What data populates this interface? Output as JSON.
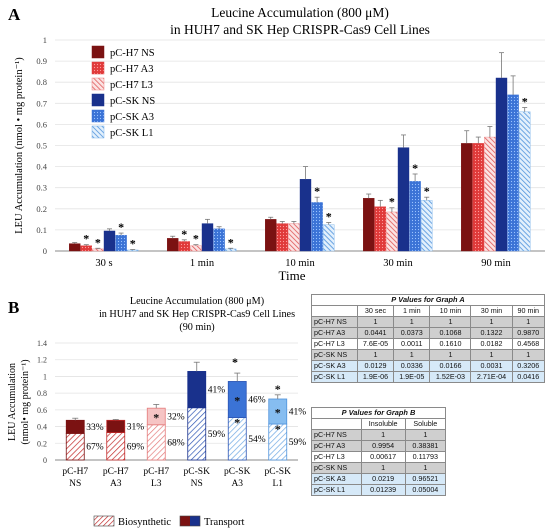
{
  "chart_data": [
    {
      "type": "bar",
      "panel_letter": "A",
      "title_line1": "Leucine Accumulation (800 μM)",
      "title_line2": "in HUH7 and SK Hep CRISPR-Cas9 Cell Lines",
      "ylabel": "LEU Accumulation (nmol • mg protein⁻¹)",
      "xlabel": "Time",
      "ylim": [
        0,
        1
      ],
      "yticks": [
        "0",
        "0.1",
        "0.2",
        "0.3",
        "0.4",
        "0.5",
        "0.6",
        "0.7",
        "0.8",
        "0.9",
        "1"
      ],
      "categories": [
        "30 s",
        "1 min",
        "10 min",
        "30 min",
        "90 min"
      ],
      "series": [
        {
          "name": "pC-H7 NS",
          "color": "#7b1212",
          "values": [
            0.035,
            0.06,
            0.15,
            0.25,
            0.51
          ],
          "errors": [
            0.005,
            0.01,
            0.01,
            0.02,
            0.06
          ],
          "star": [
            false,
            false,
            false,
            false,
            false
          ]
        },
        {
          "name": "pC-H7 A3",
          "color": "#e03a3a",
          "values": [
            0.025,
            0.045,
            0.13,
            0.21,
            0.51
          ],
          "errors": [
            0.005,
            0.008,
            0.01,
            0.03,
            0.03
          ],
          "star": [
            true,
            true,
            false,
            false,
            false
          ]
        },
        {
          "name": "pC-H7 L3",
          "color": "#ee8282",
          "values": [
            0.01,
            0.025,
            0.13,
            0.185,
            0.54
          ],
          "errors": [
            0.003,
            0.005,
            0.01,
            0.02,
            0.05
          ],
          "star": [
            true,
            true,
            false,
            true,
            false
          ]
        },
        {
          "name": "pC-SK NS",
          "color": "#19318c",
          "values": [
            0.095,
            0.13,
            0.34,
            0.49,
            0.82
          ],
          "errors": [
            0.01,
            0.02,
            0.06,
            0.06,
            0.12
          ],
          "star": [
            false,
            false,
            false,
            false,
            false
          ]
        },
        {
          "name": "pC-SK A3",
          "color": "#3b73d6",
          "values": [
            0.075,
            0.105,
            0.23,
            0.33,
            0.74
          ],
          "errors": [
            0.01,
            0.01,
            0.025,
            0.035,
            0.09
          ],
          "star": [
            true,
            false,
            true,
            true,
            false
          ]
        },
        {
          "name": "pC-SK L1",
          "color": "#7fb6ec",
          "values": [
            0.005,
            0.01,
            0.125,
            0.24,
            0.66
          ],
          "errors": [
            0.002,
            0.003,
            0.01,
            0.015,
            0.02
          ],
          "star": [
            true,
            true,
            true,
            true,
            true
          ]
        }
      ]
    },
    {
      "type": "bar",
      "panel_letter": "B",
      "title_line1": "Leucine Accumulation (800 μM)",
      "title_line2": "in HUH7 and SK Hep CRISPR-Cas9 Cell Lines",
      "title_line3": "(90 min)",
      "ylabel_line1": "LEU Accumulation",
      "ylabel_line2": "(nmol• mg protein⁻¹)",
      "ylim": [
        0,
        1.4
      ],
      "yticks": [
        "0",
        "0.2",
        "0.4",
        "0.6",
        "0.8",
        "1",
        "1.2",
        "1.4"
      ],
      "categories": [
        [
          "pC-H7",
          "NS"
        ],
        [
          "pC-H7",
          "A3"
        ],
        [
          "pC-H7",
          "L3"
        ],
        [
          "pC-SK",
          "NS"
        ],
        [
          "pC-SK",
          "A3"
        ],
        [
          "pC-SK",
          "L1"
        ]
      ],
      "totals": [
        0.475,
        0.475,
        0.62,
        1.06,
        0.94,
        0.73
      ],
      "total_errors": [
        0.025,
        0.01,
        0.045,
        0.11,
        0.1,
        0.05
      ],
      "biosynthetic_pct": [
        "67%",
        "69%",
        "68%",
        "59%",
        "54%",
        "59%"
      ],
      "transport_pct": [
        "33%",
        "31%",
        "32%",
        "41%",
        "46%",
        "41%"
      ],
      "biosynthetic_fraction": [
        0.67,
        0.69,
        0.68,
        0.59,
        0.54,
        0.59
      ],
      "star_bio": [
        false,
        false,
        false,
        false,
        true,
        true
      ],
      "star_trans": [
        false,
        false,
        true,
        false,
        true,
        true
      ],
      "star_top": [
        false,
        false,
        false,
        false,
        false,
        true
      ],
      "colors_dark": [
        "#7b1212",
        "#7b1212",
        "#ee8282",
        "#19318c",
        "#3b73d6",
        "#7fb6ec"
      ],
      "colors_light": [
        "#7b1212",
        "#7b1212",
        "#ee8282",
        "#19318c",
        "#3b73d6",
        "#7fb6ec"
      ],
      "legend": [
        "Biosynthetic",
        "Transport"
      ]
    }
  ],
  "tableA": {
    "caption_p": "P",
    "caption_rest": " Values for Graph A",
    "columns": [
      "",
      "30 sec",
      "1 min",
      "10 min",
      "30 min",
      "90 min"
    ],
    "rows": [
      {
        "label": "pC-H7 NS",
        "cells": [
          "1",
          "1",
          "1",
          "1",
          "1"
        ],
        "style": "gray"
      },
      {
        "label": "pC-H7 A3",
        "cells": [
          "0.0441",
          "0.0373",
          "0.1068",
          "0.1322",
          "0.9870"
        ],
        "style": "gray"
      },
      {
        "label": "pC-H7 L3",
        "cells": [
          "7.6E-05",
          "0.0011",
          "0.1610",
          "0.0182",
          "0.4568"
        ],
        "style": "white"
      },
      {
        "label": "pC-SK NS",
        "cells": [
          "1",
          "1",
          "1",
          "1",
          "1"
        ],
        "style": "gray"
      },
      {
        "label": "pC-SK A3",
        "cells": [
          "0.0129",
          "0.0336",
          "0.0166",
          "0.0031",
          "0.3206"
        ],
        "style": "blue"
      },
      {
        "label": "pC-SK L1",
        "cells": [
          "1.9E-06",
          "1.9E-05",
          "1.52E-03",
          "2.71E-04",
          "0.0416"
        ],
        "style": "blue"
      }
    ]
  },
  "tableB": {
    "caption_p": "P",
    "caption_rest": " Values for Graph B",
    "columns": [
      "",
      "Insoluble",
      "Soluble"
    ],
    "rows": [
      {
        "label": "pC-H7 NS",
        "cells": [
          "1",
          "1"
        ],
        "style": "gray"
      },
      {
        "label": "pC-H7 A3",
        "cells": [
          "0.9954",
          "0.38381"
        ],
        "style": "gray"
      },
      {
        "label": "pC-H7 L3",
        "cells": [
          "0.00617",
          "0.11793"
        ],
        "style": "white"
      },
      {
        "label": "pC-SK NS",
        "cells": [
          "1",
          "1"
        ],
        "style": "gray"
      },
      {
        "label": "pC-SK A3",
        "cells": [
          "0.0219",
          "0.96521"
        ],
        "style": "blue"
      },
      {
        "label": "pC-SK L1",
        "cells": [
          "0.01239",
          "0.05004"
        ],
        "style": "blue"
      }
    ]
  }
}
